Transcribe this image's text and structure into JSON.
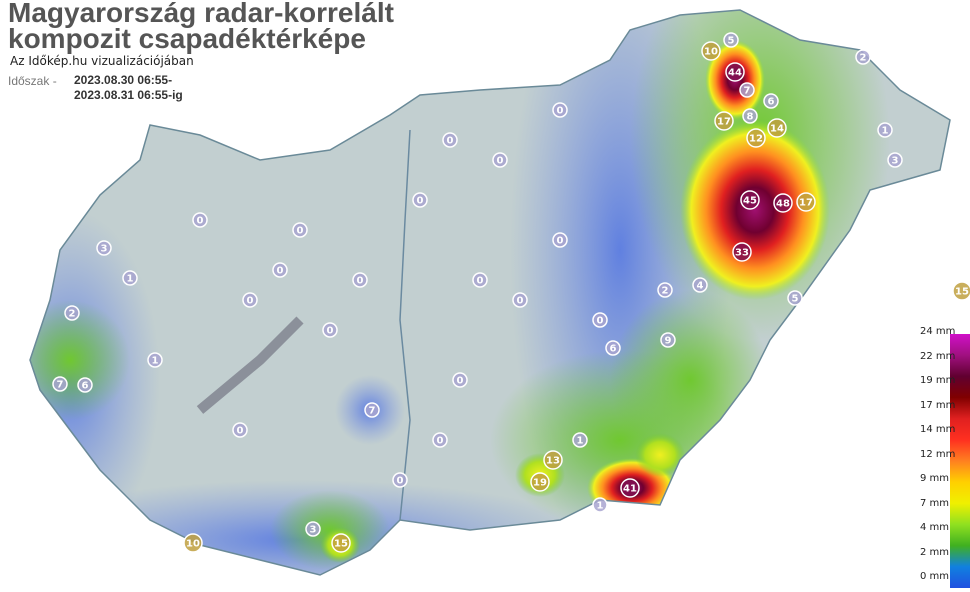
{
  "title_line1": "Magyarország radar-korrelált",
  "title_line2": "kompozit csapadéktérképe",
  "subtitle": "Az Időkép.hu vizualizációjában",
  "period": {
    "label": "Időszak -",
    "from": "2023.08.30 06:55-",
    "to": "2023.08.31 06:55-ig"
  },
  "legend": {
    "labels": [
      "24 mm",
      "22 mm",
      "19 mm",
      "17 mm",
      "14 mm",
      "12 mm",
      "9 mm",
      "7 mm",
      "4 mm",
      "2 mm",
      "0 mm"
    ],
    "colors": [
      "#d010c8",
      "#a01080",
      "#600030",
      "#800000",
      "#e02020",
      "#ff3020",
      "#ff8020",
      "#ffd000",
      "#f0f000",
      "#90e020",
      "#40b020",
      "#1080e0",
      "#2050e0"
    ]
  },
  "stations": [
    {
      "value": "44"
    },
    {
      "value": "45"
    },
    {
      "value": "48"
    },
    {
      "value": "33"
    },
    {
      "value": "41"
    },
    {
      "value": "17"
    },
    {
      "value": "17"
    },
    {
      "value": "14"
    },
    {
      "value": "12"
    },
    {
      "value": "8"
    },
    {
      "value": "19"
    },
    {
      "value": "13"
    },
    {
      "value": "15"
    },
    {
      "value": "10"
    },
    {
      "value": "7"
    },
    {
      "value": "5"
    },
    {
      "value": "6"
    },
    {
      "value": "7"
    },
    {
      "value": "10"
    },
    {
      "value": "3"
    },
    {
      "value": "3"
    },
    {
      "value": "2"
    },
    {
      "value": "7"
    },
    {
      "value": "6"
    },
    {
      "value": "1"
    },
    {
      "value": "1"
    },
    {
      "value": "1"
    },
    {
      "value": "0"
    },
    {
      "value": "0"
    },
    {
      "value": "0"
    },
    {
      "value": "0"
    },
    {
      "value": "0"
    },
    {
      "value": "0"
    },
    {
      "value": "0"
    },
    {
      "value": "0"
    },
    {
      "value": "0"
    },
    {
      "value": "0"
    },
    {
      "value": "0"
    },
    {
      "value": "0"
    },
    {
      "value": "0"
    },
    {
      "value": "0"
    },
    {
      "value": "0"
    },
    {
      "value": "0"
    },
    {
      "value": "0"
    },
    {
      "value": "0"
    },
    {
      "value": "4"
    },
    {
      "value": "2"
    },
    {
      "value": "5"
    },
    {
      "value": "6"
    },
    {
      "value": "9"
    },
    {
      "value": "1"
    },
    {
      "value": "1"
    },
    {
      "value": "3"
    },
    {
      "value": "2"
    },
    {
      "value": "15"
    }
  ]
}
